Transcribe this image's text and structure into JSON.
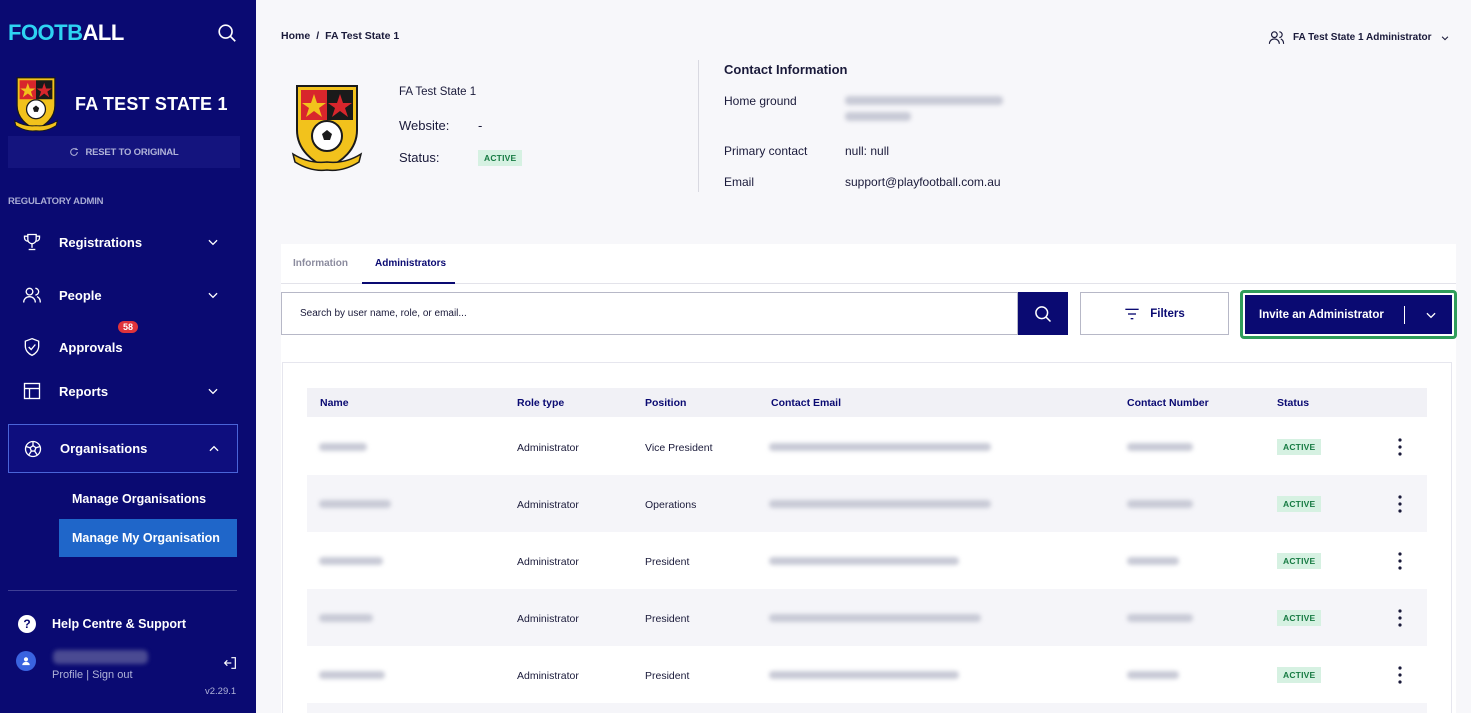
{
  "brand": {
    "part1": "FOOTB",
    "part2": "ALL"
  },
  "sidebar": {
    "org_name": "FA TEST STATE 1",
    "reset_label": "RESET TO ORIGINAL",
    "section_label": "REGULATORY ADMIN",
    "nav": {
      "registrations": "Registrations",
      "people": "People",
      "approvals": "Approvals",
      "approvals_badge": "58",
      "reports": "Reports",
      "organisations": "Organisations"
    },
    "sub": {
      "manage_orgs": "Manage Organisations",
      "manage_my_org": "Manage My Organisation"
    },
    "help": "Help Centre & Support",
    "profile_links": "Profile | Sign out",
    "version": "v2.29.1"
  },
  "breadcrumb": {
    "home": "Home",
    "sep": "/",
    "current": "FA Test State 1"
  },
  "user_menu": {
    "label": "FA Test State 1 Administrator"
  },
  "header": {
    "org_name": "FA Test State 1",
    "website_label": "Website:",
    "website_value": "-",
    "status_label": "Status:",
    "status_value": "ACTIVE"
  },
  "contact": {
    "title": "Contact Information",
    "home_ground_label": "Home ground",
    "primary_contact_label": "Primary contact",
    "primary_contact_value": "null: null",
    "email_label": "Email",
    "email_value": "support@playfootball.com.au"
  },
  "tabs": {
    "information": "Information",
    "administrators": "Administrators"
  },
  "search": {
    "placeholder": "Search by user name, role, or email..."
  },
  "filters_label": "Filters",
  "invite_label": "Invite an Administrator",
  "table": {
    "headers": {
      "name": "Name",
      "role": "Role type",
      "position": "Position",
      "email": "Contact Email",
      "phone": "Contact Number",
      "status": "Status"
    },
    "rows": [
      {
        "role": "Administrator",
        "position": "Vice President",
        "status": "ACTIVE"
      },
      {
        "role": "Administrator",
        "position": "Operations",
        "status": "ACTIVE"
      },
      {
        "role": "Administrator",
        "position": "President",
        "status": "ACTIVE"
      },
      {
        "role": "Administrator",
        "position": "President",
        "status": "ACTIVE"
      },
      {
        "role": "Administrator",
        "position": "President",
        "status": "ACTIVE"
      }
    ]
  },
  "colors": {
    "navy": "#0a0a72",
    "cyan": "#2ed3f2",
    "green_border": "#2f9e5a",
    "active_bg": "#d6f1e2",
    "badge_red": "#e0333b"
  }
}
